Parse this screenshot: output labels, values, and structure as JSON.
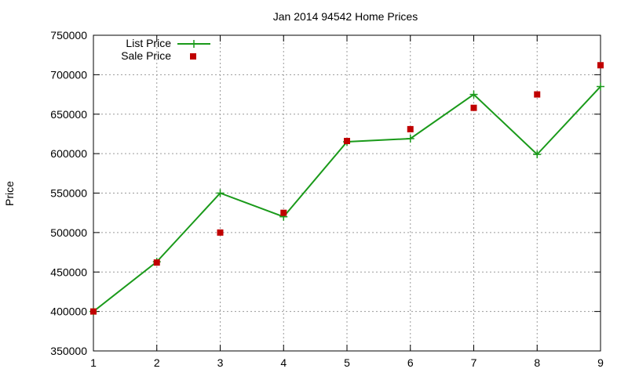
{
  "chart_data": {
    "type": "line",
    "title": "Jan 2014 94542 Home Prices",
    "xlabel": "",
    "ylabel": "Price",
    "xlim": [
      1,
      9
    ],
    "ylim": [
      350000,
      750000
    ],
    "x_ticks": [
      "1",
      "2",
      "3",
      "4",
      "5",
      "6",
      "7",
      "8",
      "9"
    ],
    "y_ticks": [
      "350000",
      "400000",
      "450000",
      "500000",
      "550000",
      "600000",
      "650000",
      "700000",
      "750000"
    ],
    "grid": true,
    "legend_position": "top-left",
    "x": [
      1,
      2,
      3,
      4,
      5,
      6,
      7,
      8,
      9
    ],
    "series": [
      {
        "name": "List Price",
        "style": "line-with-plus-markers",
        "color": "#1a9a1a",
        "values": [
          400000,
          463000,
          550000,
          520000,
          615000,
          619000,
          675000,
          599000,
          685000
        ]
      },
      {
        "name": "Sale Price",
        "style": "square-markers",
        "color": "#c00000",
        "values": [
          400000,
          462000,
          500000,
          525000,
          616000,
          631000,
          658000,
          675000,
          712000
        ]
      }
    ]
  }
}
